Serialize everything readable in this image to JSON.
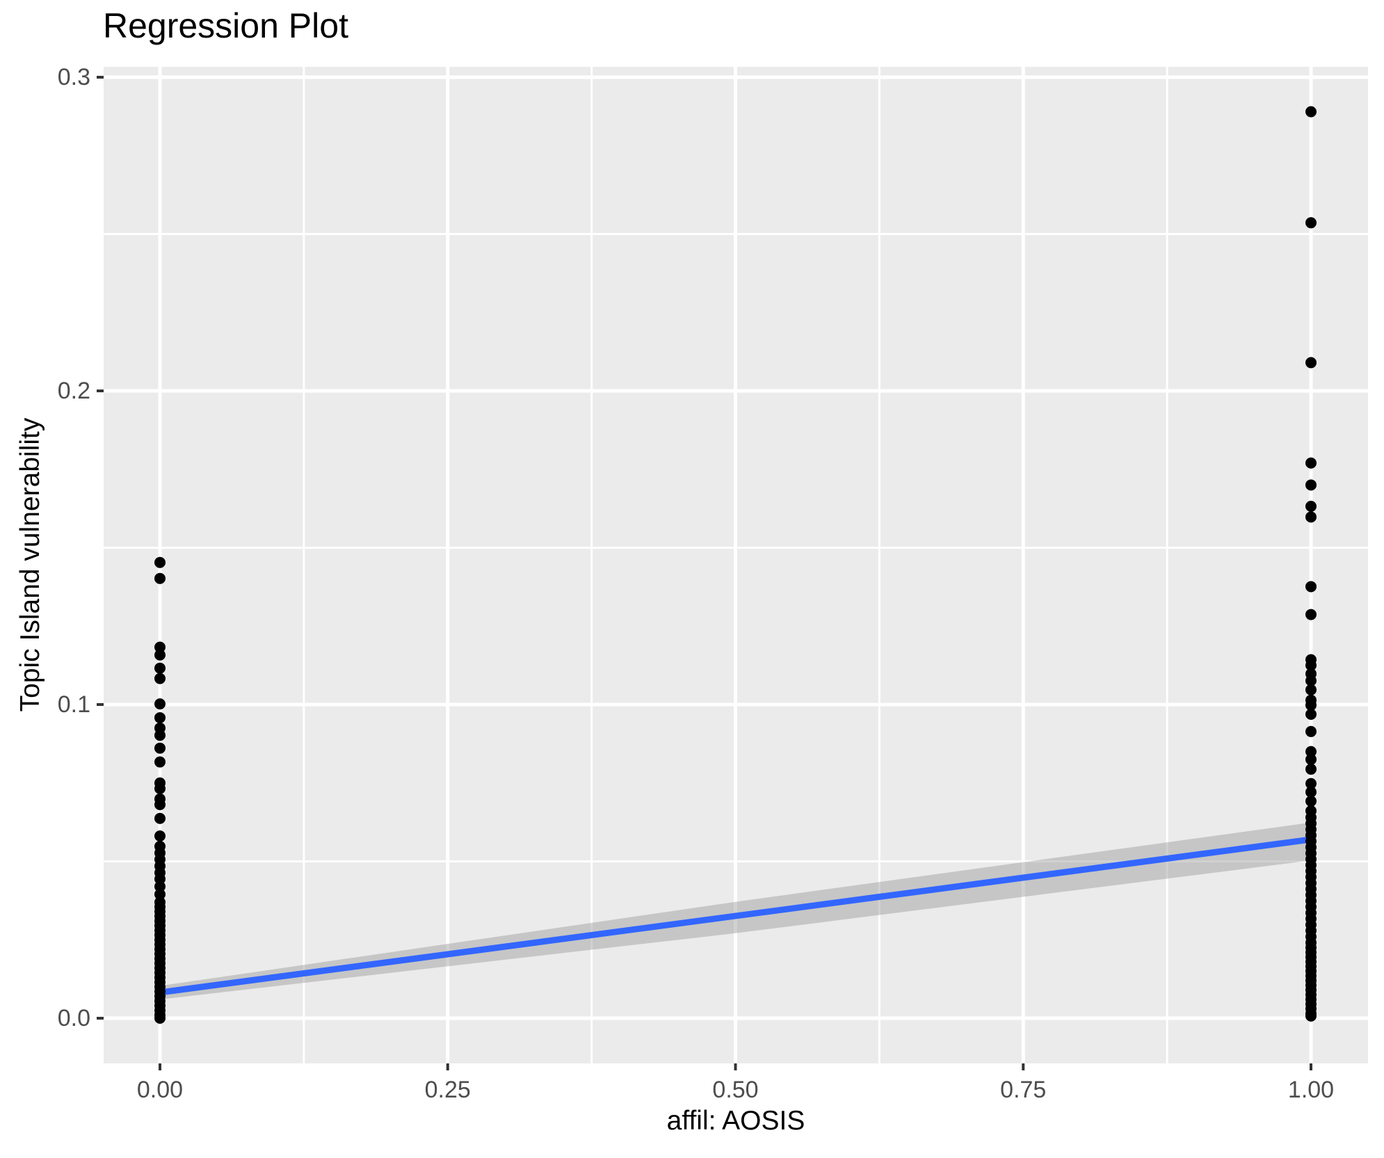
{
  "chart_data": {
    "type": "scatter",
    "title": "Regression Plot",
    "xlabel": "affil: AOSIS",
    "ylabel": "Topic Island vulnerability",
    "grid": "on",
    "legend": "none",
    "xlim": [
      -0.04894,
      1.04954
    ],
    "ylim": [
      -0.01441,
      0.30333
    ],
    "x_ticks": {
      "values": [
        0,
        0.25,
        0.5,
        0.75,
        1
      ],
      "labels": [
        "0.00",
        "0.25",
        "0.50",
        "0.75",
        "1.00"
      ]
    },
    "y_ticks": {
      "values": [
        0,
        0.1,
        0.2,
        0.3
      ],
      "labels": [
        "0.0",
        "0.1",
        "0.2",
        "0.3"
      ]
    },
    "x_minor": [
      0.125,
      0.375,
      0.625,
      0.875
    ],
    "y_minor": [
      0.05,
      0.15,
      0.25
    ],
    "series": [
      {
        "name": "affil: AOSIS = 0",
        "x": 0,
        "values": [
          0.1453,
          0.1402,
          0.1183,
          0.1158,
          0.1116,
          0.1083,
          0.1002,
          0.0958,
          0.0925,
          0.0902,
          0.0861,
          0.0817,
          0.075,
          0.0732,
          0.0699,
          0.0681,
          0.0637,
          0.0581,
          0.0548,
          0.0527,
          0.0506,
          0.0485,
          0.0464,
          0.0444,
          0.042,
          0.0395,
          0.037,
          0.0355,
          0.034,
          0.0325,
          0.031,
          0.0295,
          0.028,
          0.0265,
          0.025,
          0.0235,
          0.022,
          0.0205,
          0.019,
          0.0175,
          0.016,
          0.0145,
          0.013,
          0.0115,
          0.01,
          0.0085,
          0.007,
          0.0055,
          0.004,
          0.0025,
          0.001,
          0.0
        ]
      },
      {
        "name": "affil: AOSIS = 1",
        "x": 1,
        "values": [
          0.289,
          0.2536,
          0.209,
          0.177,
          0.17,
          0.1632,
          0.1598,
          0.1376,
          0.1287,
          0.1143,
          0.1125,
          0.1098,
          0.1076,
          0.1047,
          0.1014,
          0.0998,
          0.0969,
          0.0914,
          0.085,
          0.0825,
          0.0794,
          0.0748,
          0.0721,
          0.0692,
          0.0661,
          0.064,
          0.0621,
          0.0602,
          0.0583,
          0.0564,
          0.0545,
          0.0526,
          0.0507,
          0.0488,
          0.0469,
          0.045,
          0.0431,
          0.0412,
          0.0393,
          0.0374,
          0.0355,
          0.0336,
          0.0317,
          0.0298,
          0.0279,
          0.026,
          0.0241,
          0.0225,
          0.021,
          0.0195,
          0.018,
          0.0165,
          0.015,
          0.0135,
          0.012,
          0.0105,
          0.009,
          0.0075,
          0.006,
          0.0045,
          0.003,
          0.0015,
          0.0007
        ]
      }
    ],
    "regression": {
      "x": [
        0,
        1
      ],
      "y": [
        0.0082,
        0.057
      ],
      "ci_lower": [
        [
          0,
          0.006
        ],
        [
          0.5,
          0.0271
        ],
        [
          1,
          0.0503
        ]
      ],
      "ci_upper": [
        [
          0,
          0.0103
        ],
        [
          0.5,
          0.0371
        ],
        [
          1,
          0.0624
        ]
      ]
    },
    "colors": {
      "panel_bg": "#EBEBEB",
      "grid": "#FFFFFF",
      "point": "#000000",
      "line": "#3366FF",
      "ribbon": "#999999",
      "ribbon_opacity": 0.45,
      "axis_text": "#4D4D4D",
      "tick_mark": "#333333",
      "title_text": "#000000"
    }
  }
}
